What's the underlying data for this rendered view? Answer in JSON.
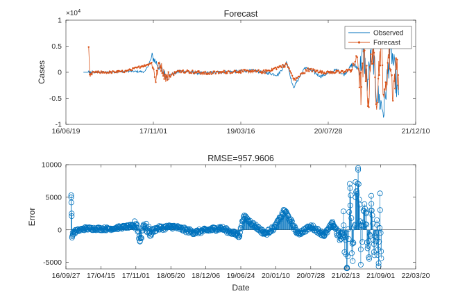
{
  "chart_data": [
    {
      "type": "line",
      "title": "Forecast",
      "ylabel": "Cases",
      "xlabel": "",
      "y_exponent_label": "×10",
      "y_exponent_power": "4",
      "x_range": [
        "2016-06-19",
        "2021-12-10"
      ],
      "ylim": [
        -1,
        1
      ],
      "y_scale_note": "values in units of 10^4 cases",
      "x_ticks": [
        "2016-06-19",
        "2017-11-01",
        "2019-03-16",
        "2020-07-28",
        "2021-12-10"
      ],
      "x_tick_labels": [
        "16/06/19",
        "17/11/01",
        "19/03/16",
        "20/07/28",
        "21/12/10"
      ],
      "y_ticks": [
        -1,
        -0.5,
        0,
        0.5,
        1
      ],
      "y_tick_labels": [
        "-1",
        "-0.5",
        "0",
        "0.5",
        "1"
      ],
      "legend": {
        "placement": "top-right",
        "entries": [
          "Observed",
          "Forecast"
        ]
      },
      "series": [
        {
          "name": "Observed",
          "color": "#0072BD",
          "x": [
            "2016-09-27",
            "2016-11-15",
            "2017-03-01",
            "2017-06-01",
            "2017-09-15",
            "2017-10-25",
            "2017-12-01",
            "2018-01-15",
            "2018-04-01",
            "2018-08-01",
            "2019-01-01",
            "2019-06-01",
            "2019-10-15",
            "2019-12-05",
            "2020-01-10",
            "2020-03-20",
            "2020-06-15",
            "2020-09-15",
            "2020-10-25",
            "2020-12-15",
            "2021-01-25",
            "2021-02-10",
            "2021-03-10",
            "2021-04-05",
            "2021-05-01",
            "2021-06-10",
            "2021-07-20",
            "2021-08-20",
            "2021-09-05"
          ],
          "values": [
            0,
            0,
            0,
            0.02,
            0.01,
            0.3,
            0.12,
            -0.08,
            0.02,
            -0.02,
            0.01,
            0.03,
            -0.05,
            0.2,
            -0.3,
            0.1,
            -0.08,
            0.05,
            -0.05,
            0.15,
            0.05,
            0.4,
            -0.2,
            0.5,
            -0.4,
            -0.75,
            0.5,
            -0.2,
            -0.55
          ]
        },
        {
          "name": "Forecast",
          "color": "#D95319",
          "x": [
            "2016-10-27",
            "2016-10-29",
            "2016-11-01",
            "2016-11-04",
            "2016-11-10",
            "2016-11-20",
            "2017-03-01",
            "2017-06-01",
            "2017-10-25",
            "2017-11-15",
            "2017-12-05",
            "2018-01-10",
            "2018-04-01",
            "2018-09-01",
            "2019-03-01",
            "2019-08-01",
            "2019-12-05",
            "2020-01-15",
            "2020-04-01",
            "2020-07-15",
            "2020-10-10",
            "2020-12-10",
            "2021-01-10",
            "2021-02-01",
            "2021-02-20",
            "2021-03-15",
            "2021-04-05",
            "2021-05-01",
            "2021-05-25",
            "2021-06-15",
            "2021-07-10",
            "2021-08-01",
            "2021-08-25",
            "2021-09-06"
          ],
          "values": [
            0.5,
            0.45,
            -0.08,
            -0.12,
            -0.02,
            0.0,
            0.0,
            0.02,
            0.18,
            -0.15,
            0.2,
            -0.1,
            0.03,
            -0.02,
            0.02,
            0.01,
            0.15,
            -0.15,
            0.05,
            0.0,
            0.0,
            0.05,
            0.3,
            -0.4,
            0.35,
            -0.55,
            0.5,
            -0.45,
            0.55,
            -0.6,
            0.45,
            -0.35,
            0.2,
            -0.25
          ]
        }
      ]
    },
    {
      "type": "scatter",
      "title": "RMSE=957.9606",
      "xlabel": "Date",
      "ylabel": "Error",
      "x_range": [
        "2016-09-27",
        "2022-03-20"
      ],
      "ylim": [
        -6000,
        10000
      ],
      "x_ticks": [
        "2016-09-27",
        "2017-04-15",
        "2017-11-01",
        "2018-05-20",
        "2018-12-06",
        "2019-06-24",
        "2020-01-10",
        "2020-07-28",
        "2021-02-13",
        "2021-09-01",
        "2022-03-20"
      ],
      "x_tick_labels": [
        "16/09/27",
        "17/04/15",
        "17/11/01",
        "18/05/20",
        "18/12/06",
        "19/06/24",
        "20/01/10",
        "20/07/28",
        "21/02/13",
        "21/09/01",
        "22/03/20"
      ],
      "y_ticks": [
        -5000,
        0,
        5000,
        10000
      ],
      "y_tick_labels": [
        "-5000",
        "0",
        "5000",
        "10000"
      ],
      "grid": false,
      "series": [
        {
          "color": "#0072BD",
          "marker": "circle-stem",
          "x": [
            "2016-10-27",
            "2016-10-28",
            "2016-10-30",
            "2016-11-01",
            "2016-11-05",
            "2016-11-10",
            "2017-01-15",
            "2017-06-01",
            "2017-10-20",
            "2017-11-05",
            "2017-11-25",
            "2017-12-15",
            "2018-01-20",
            "2018-03-01",
            "2018-06-01",
            "2018-10-01",
            "2019-03-01",
            "2019-06-15",
            "2019-07-10",
            "2019-11-10",
            "2020-01-05",
            "2020-03-01",
            "2020-05-15",
            "2020-08-01",
            "2020-10-15",
            "2020-12-01",
            "2021-01-15",
            "2021-01-25",
            "2021-02-01",
            "2021-02-20",
            "2021-03-10",
            "2021-03-25",
            "2021-04-10",
            "2021-04-25",
            "2021-05-10",
            "2021-05-25",
            "2021-06-10",
            "2021-06-25",
            "2021-07-10",
            "2021-07-25",
            "2021-08-10",
            "2021-08-20",
            "2021-08-28",
            "2021-09-03"
          ],
          "values": [
            5000,
            4200,
            2500,
            -1200,
            -800,
            -300,
            200,
            150,
            600,
            900,
            -1700,
            800,
            -400,
            200,
            500,
            -400,
            300,
            -900,
            2000,
            -600,
            400,
            3000,
            -600,
            500,
            -800,
            1000,
            -1400,
            -600,
            700,
            -5800,
            6400,
            -4800,
            5000,
            9200,
            -3000,
            3000,
            2500,
            -4200,
            4000,
            -2200,
            1500,
            -5600,
            5600,
            -3300
          ]
        }
      ]
    }
  ]
}
